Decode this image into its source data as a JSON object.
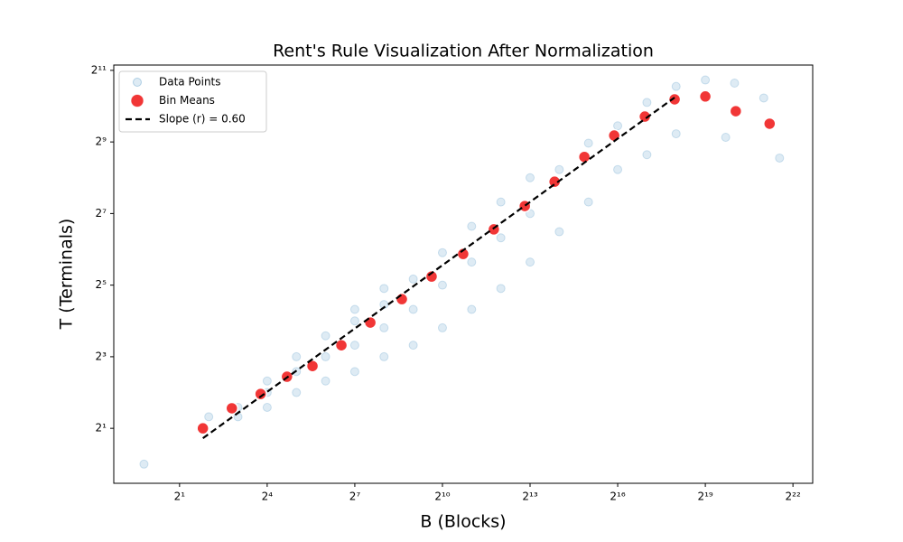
{
  "chart_data": {
    "type": "scatter",
    "title": "Rent's Rule Visualization After Normalization",
    "x_label": "B (Blocks)",
    "y_label": "T (Terminals)",
    "xscale": "log2",
    "yscale": "log2",
    "xlim": [
      0.42,
      6700000
    ],
    "ylim": [
      0.69,
      2270
    ],
    "xticks": [
      {
        "value": 2,
        "label": "2¹"
      },
      {
        "value": 16,
        "label": "2⁴"
      },
      {
        "value": 128,
        "label": "2⁷"
      },
      {
        "value": 1024,
        "label": "2¹⁰"
      },
      {
        "value": 8192,
        "label": "2¹³"
      },
      {
        "value": 65536,
        "label": "2¹⁶"
      },
      {
        "value": 524288,
        "label": "2¹⁹"
      },
      {
        "value": 4194304,
        "label": "2²²"
      }
    ],
    "yticks": [
      {
        "value": 2,
        "label": "2¹"
      },
      {
        "value": 8,
        "label": "2³"
      },
      {
        "value": 32,
        "label": "2⁵"
      },
      {
        "value": 128,
        "label": "2⁷"
      },
      {
        "value": 512,
        "label": "2⁹"
      },
      {
        "value": 2048,
        "label": "2¹¹"
      }
    ],
    "legend": "upper left",
    "series": [
      {
        "name": "Data Points",
        "kind": "scatter",
        "color": "#1f77b4",
        "x": [
          0.86,
          4,
          8,
          8,
          16,
          16,
          16,
          32,
          32,
          32,
          64,
          64,
          64,
          128,
          128,
          128,
          128,
          256,
          256,
          256,
          256,
          512,
          512,
          512,
          1024,
          1024,
          1024,
          2048,
          2048,
          2048,
          4096,
          4096,
          4096,
          8192,
          8192,
          8192,
          16384,
          16384,
          32768,
          32768,
          65536,
          65536,
          131072,
          131072,
          262144,
          262144,
          524288,
          850000,
          1048576,
          2097152,
          3050000
        ],
        "values": [
          1,
          2.5,
          3,
          2.5,
          3,
          4,
          5,
          4,
          6,
          8,
          5,
          8,
          12,
          6,
          10,
          16,
          20,
          8,
          14,
          22,
          30,
          10,
          20,
          36,
          14,
          32,
          60,
          20,
          50,
          100,
          30,
          80,
          160,
          50,
          128,
          256,
          90,
          300,
          160,
          500,
          300,
          700,
          400,
          1100,
          600,
          1500,
          1700,
          560,
          1600,
          1200,
          375
        ]
      },
      {
        "name": "Bin Means",
        "kind": "scatter",
        "color": "#f02020",
        "x": [
          3.48,
          6.92,
          13.7,
          25.6,
          46.9,
          93.1,
          185,
          391,
          792,
          1675,
          3468,
          7229,
          14660,
          29730,
          60290,
          124800,
          253000,
          524288,
          1080000,
          2410000
        ],
        "values": [
          2,
          2.95,
          3.89,
          5.43,
          6.68,
          9.99,
          15.5,
          24.4,
          37.8,
          58.5,
          94.2,
          148,
          237,
          383,
          580,
          837,
          1168,
          1235,
          929,
          729
        ]
      },
      {
        "name": "Slope (r) = 0.60",
        "kind": "line",
        "color": "#000000",
        "x": [
          3.48,
          253000
        ],
        "values": [
          1.65,
          1210
        ]
      }
    ]
  }
}
